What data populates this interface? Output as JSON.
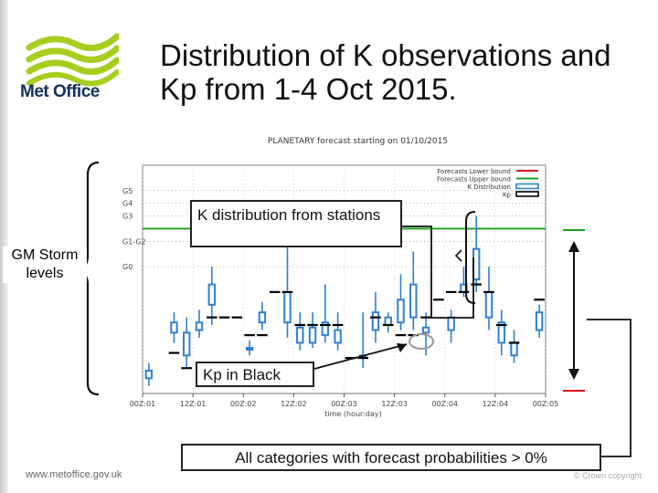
{
  "slide": {
    "title_line1": "Distribution of K observations and",
    "title_line2": "Kp from 1-4 Oct 2015.",
    "brand": "Met Office",
    "footer_url": "www.metoffice.gov.uk",
    "copyright": "© Crown copyright"
  },
  "annotations": {
    "storm_levels": "GM Storm levels",
    "k_distribution": "K distribution from stations",
    "kp_black": "Kp in Black",
    "all_categories": "All categories with forecast probabilities > 0%"
  },
  "colors": {
    "lower_bound": "#e01010",
    "upper_bound": "#1aa31a",
    "k_distribution": "#2f7fd2",
    "kp": "#000000",
    "logo_green": "#a6ce1e",
    "logo_text": "#14315a"
  },
  "chart_data": {
    "type": "box",
    "title": "PLANETARY forecast starting on 01/10/2015",
    "xlabel": "time (hour:day)",
    "ylabel": "",
    "xlim": [
      0,
      32
    ],
    "ylim": [
      0,
      9
    ],
    "x_ticks": [
      {
        "x": 0,
        "label": "00Z:01"
      },
      {
        "x": 4,
        "label": "12Z:01"
      },
      {
        "x": 8,
        "label": "00Z:02"
      },
      {
        "x": 12,
        "label": "12Z:02"
      },
      {
        "x": 16,
        "label": "00Z:03"
      },
      {
        "x": 20,
        "label": "12Z:03"
      },
      {
        "x": 24,
        "label": "00Z:04"
      },
      {
        "x": 28,
        "label": "12Z:04"
      },
      {
        "x": 32,
        "label": "00Z:05"
      }
    ],
    "y_ticks": [
      {
        "value": 5,
        "label": "G0"
      },
      {
        "value": 6,
        "label": "G1-G2"
      },
      {
        "value": 7,
        "label": "G3"
      },
      {
        "value": 7.5,
        "label": "G4"
      },
      {
        "value": 8,
        "label": "G5"
      }
    ],
    "upper_bound": 6.5,
    "lower_bound": null,
    "legend": [
      "Forecasts Lower bound",
      "Forecasts Upper bound",
      "K Distribution",
      "Kp"
    ],
    "legend_position": "top-right",
    "k_distribution": [
      {
        "x": 0.5,
        "low": 0.3,
        "q1": 0.6,
        "q3": 0.9,
        "high": 1.2
      },
      {
        "x": 2.5,
        "low": 2.0,
        "q1": 2.4,
        "q3": 2.8,
        "high": 3.2
      },
      {
        "x": 3.5,
        "low": 1.0,
        "q1": 1.5,
        "q3": 2.4,
        "high": 3.0
      },
      {
        "x": 4.5,
        "low": 2.2,
        "q1": 2.5,
        "q3": 2.8,
        "high": 3.3
      },
      {
        "x": 5.5,
        "low": 2.7,
        "q1": 3.5,
        "q3": 4.3,
        "high": 5.0
      },
      {
        "x": 8.5,
        "low": 1.5,
        "q1": 1.8,
        "q3": 1.8,
        "high": 2.1
      },
      {
        "x": 9.5,
        "low": 2.5,
        "q1": 2.8,
        "q3": 3.2,
        "high": 3.6
      },
      {
        "x": 11.5,
        "low": 2.2,
        "q1": 2.8,
        "q3": 4.0,
        "high": 6.0
      },
      {
        "x": 12.5,
        "low": 1.7,
        "q1": 2.0,
        "q3": 2.6,
        "high": 3.2
      },
      {
        "x": 13.5,
        "low": 1.8,
        "q1": 2.0,
        "q3": 2.6,
        "high": 3.2
      },
      {
        "x": 14.5,
        "low": 2.0,
        "q1": 2.3,
        "q3": 2.8,
        "high": 4.3
      },
      {
        "x": 15.5,
        "low": 1.7,
        "q1": 2.0,
        "q3": 2.5,
        "high": 3.2
      },
      {
        "x": 17.5,
        "low": 1.0,
        "q1": 1.5,
        "q3": 1.5,
        "high": 3.2
      },
      {
        "x": 18.5,
        "low": 2.0,
        "q1": 2.5,
        "q3": 3.2,
        "high": 4.0
      },
      {
        "x": 19.5,
        "low": 2.4,
        "q1": 2.7,
        "q3": 3.0,
        "high": 3.2
      },
      {
        "x": 20.5,
        "low": 2.5,
        "q1": 2.8,
        "q3": 3.7,
        "high": 4.7
      },
      {
        "x": 21.5,
        "low": 2.5,
        "q1": 3.0,
        "q3": 4.3,
        "high": 5.6
      },
      {
        "x": 22.5,
        "low": 1.5,
        "q1": 2.4,
        "q3": 2.6,
        "high": 3.2
      },
      {
        "x": 24.5,
        "low": 2.0,
        "q1": 2.5,
        "q3": 3.0,
        "high": 3.3
      },
      {
        "x": 25.5,
        "low": 3.8,
        "q1": 4.0,
        "q3": 4.3,
        "high": 5.0
      },
      {
        "x": 26.5,
        "low": 4.0,
        "q1": 4.5,
        "q3": 5.7,
        "high": 7.0
      },
      {
        "x": 27.5,
        "low": 2.5,
        "q1": 3.0,
        "q3": 4.0,
        "high": 5.0
      },
      {
        "x": 28.5,
        "low": 1.5,
        "q1": 2.0,
        "q3": 2.8,
        "high": 3.3
      },
      {
        "x": 29.5,
        "low": 1.2,
        "q1": 1.5,
        "q3": 2.0,
        "high": 2.5
      },
      {
        "x": 31.5,
        "low": 2.2,
        "q1": 2.5,
        "q3": 3.2,
        "high": 3.5
      }
    ],
    "kp": [
      {
        "x": 2.5,
        "value": 1.6
      },
      {
        "x": 3.5,
        "value": 1.0
      },
      {
        "x": 5.5,
        "value": 3.0
      },
      {
        "x": 6.5,
        "value": 3.0
      },
      {
        "x": 7.5,
        "value": 3.0
      },
      {
        "x": 8.5,
        "value": 2.3
      },
      {
        "x": 9.5,
        "value": 2.3
      },
      {
        "x": 10.5,
        "value": 4.0
      },
      {
        "x": 11.5,
        "value": 4.0
      },
      {
        "x": 12.5,
        "value": 2.7
      },
      {
        "x": 13.5,
        "value": 2.7
      },
      {
        "x": 14.5,
        "value": 2.7
      },
      {
        "x": 15.5,
        "value": 2.7
      },
      {
        "x": 16.5,
        "value": 1.4
      },
      {
        "x": 17.5,
        "value": 1.4
      },
      {
        "x": 18.5,
        "value": 3.0
      },
      {
        "x": 19.5,
        "value": 2.7
      },
      {
        "x": 20.5,
        "value": 2.3
      },
      {
        "x": 21.5,
        "value": 2.3
      },
      {
        "x": 22.5,
        "value": 3.0
      },
      {
        "x": 23.5,
        "value": 3.7
      },
      {
        "x": 24.5,
        "value": 4.0
      },
      {
        "x": 25.5,
        "value": 4.0
      },
      {
        "x": 26.5,
        "value": 4.3
      },
      {
        "x": 27.5,
        "value": 4.0
      },
      {
        "x": 28.5,
        "value": 2.7
      },
      {
        "x": 29.5,
        "value": 2.0
      },
      {
        "x": 31.5,
        "value": 3.7
      }
    ]
  }
}
